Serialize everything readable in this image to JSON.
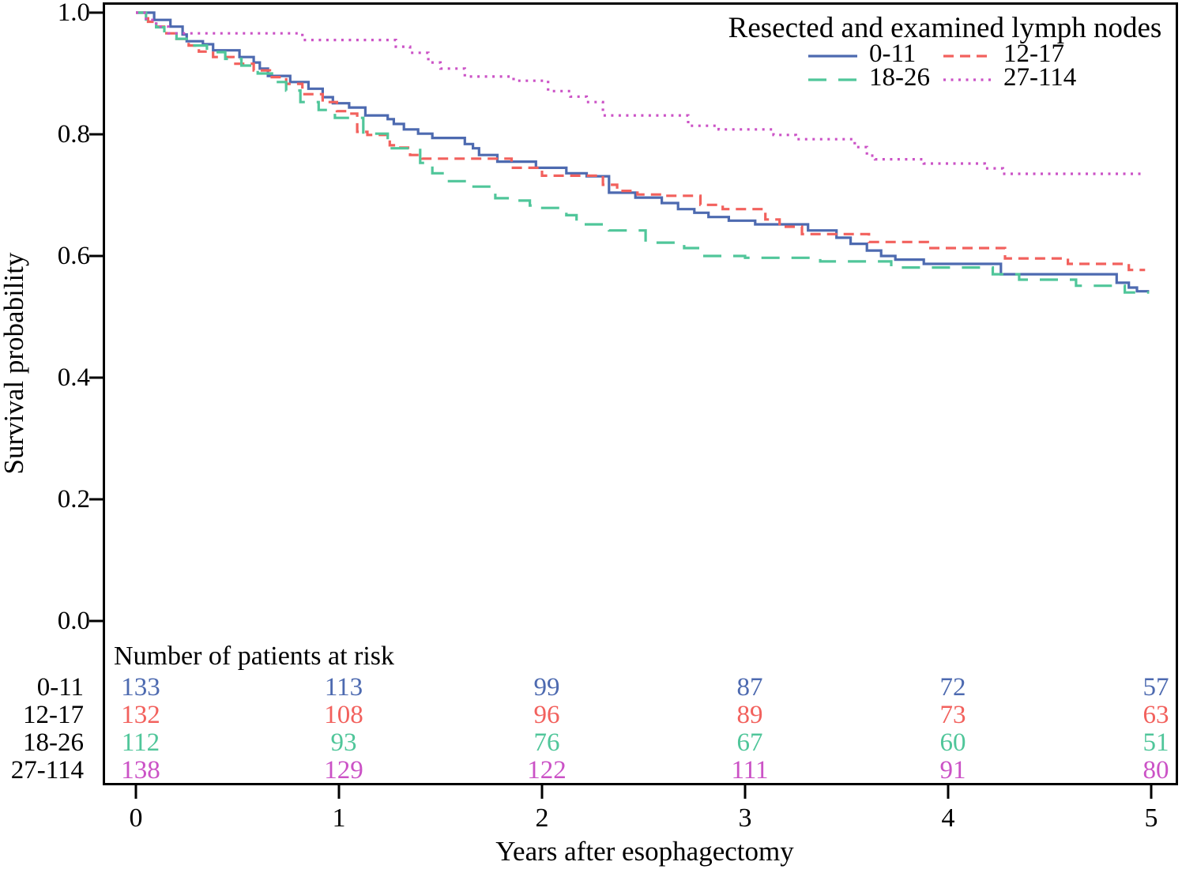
{
  "chart_data": {
    "type": "line",
    "subtype": "kaplan-meier-step",
    "xlabel": "Years after esophagectomy",
    "ylabel": "Survival probability",
    "xlim": [
      0,
      5
    ],
    "ylim": [
      0.0,
      1.0
    ],
    "grid": false,
    "legend_position": "top-right",
    "legend_title": "Resected and examined lymph nodes",
    "x_tick_labels": [
      "0",
      "1",
      "2",
      "3",
      "4",
      "5"
    ],
    "x_tick_values": [
      0,
      1,
      2,
      3,
      4,
      5
    ],
    "y_tick_labels": [
      "1.0",
      "0.8",
      "0.6",
      "0.4",
      "0.2",
      "0.0"
    ],
    "y_tick_values": [
      1.0,
      0.8,
      0.6,
      0.4,
      0.2,
      0.0
    ],
    "axis_color": "#000000",
    "series": [
      {
        "name": "0-11",
        "color": "#4d6ab0",
        "dash": "solid",
        "points": [
          [
            0,
            1.0
          ],
          [
            0.09,
            0.988
          ],
          [
            0.17,
            0.977
          ],
          [
            0.23,
            0.964
          ],
          [
            0.25,
            0.953
          ],
          [
            0.33,
            0.948
          ],
          [
            0.38,
            0.938
          ],
          [
            0.51,
            0.927
          ],
          [
            0.58,
            0.918
          ],
          [
            0.61,
            0.908
          ],
          [
            0.65,
            0.896
          ],
          [
            0.76,
            0.886
          ],
          [
            0.85,
            0.875
          ],
          [
            0.92,
            0.861
          ],
          [
            0.97,
            0.851
          ],
          [
            1.05,
            0.844
          ],
          [
            1.13,
            0.831
          ],
          [
            1.24,
            0.825
          ],
          [
            1.27,
            0.817
          ],
          [
            1.32,
            0.808
          ],
          [
            1.39,
            0.801
          ],
          [
            1.46,
            0.794
          ],
          [
            1.62,
            0.784
          ],
          [
            1.66,
            0.777
          ],
          [
            1.69,
            0.766
          ],
          [
            1.78,
            0.755
          ],
          [
            1.97,
            0.745
          ],
          [
            2.12,
            0.736
          ],
          [
            2.22,
            0.731
          ],
          [
            2.33,
            0.704
          ],
          [
            2.46,
            0.696
          ],
          [
            2.59,
            0.687
          ],
          [
            2.67,
            0.677
          ],
          [
            2.75,
            0.671
          ],
          [
            2.82,
            0.664
          ],
          [
            2.92,
            0.658
          ],
          [
            3.05,
            0.652
          ],
          [
            3.31,
            0.642
          ],
          [
            3.45,
            0.63
          ],
          [
            3.52,
            0.62
          ],
          [
            3.6,
            0.609
          ],
          [
            3.67,
            0.6
          ],
          [
            3.74,
            0.594
          ],
          [
            3.88,
            0.587
          ],
          [
            4.26,
            0.57
          ],
          [
            4.83,
            0.556
          ],
          [
            4.89,
            0.548
          ],
          [
            4.93,
            0.542
          ],
          [
            4.99,
            0.542
          ]
        ]
      },
      {
        "name": "12-17",
        "color": "#f2615d",
        "dash": "dash",
        "points": [
          [
            0,
            1.0
          ],
          [
            0.06,
            0.985
          ],
          [
            0.1,
            0.977
          ],
          [
            0.15,
            0.966
          ],
          [
            0.2,
            0.957
          ],
          [
            0.26,
            0.946
          ],
          [
            0.31,
            0.936
          ],
          [
            0.38,
            0.927
          ],
          [
            0.48,
            0.916
          ],
          [
            0.58,
            0.905
          ],
          [
            0.66,
            0.894
          ],
          [
            0.74,
            0.883
          ],
          [
            0.82,
            0.866
          ],
          [
            0.92,
            0.853
          ],
          [
            0.99,
            0.838
          ],
          [
            1.03,
            0.834
          ],
          [
            1.09,
            0.804
          ],
          [
            1.14,
            0.799
          ],
          [
            1.25,
            0.782
          ],
          [
            1.28,
            0.778
          ],
          [
            1.35,
            0.766
          ],
          [
            1.41,
            0.76
          ],
          [
            1.85,
            0.745
          ],
          [
            2.0,
            0.732
          ],
          [
            2.3,
            0.717
          ],
          [
            2.37,
            0.707
          ],
          [
            2.47,
            0.701
          ],
          [
            2.61,
            0.699
          ],
          [
            2.78,
            0.684
          ],
          [
            2.89,
            0.677
          ],
          [
            3.1,
            0.66
          ],
          [
            3.17,
            0.648
          ],
          [
            3.28,
            0.636
          ],
          [
            3.61,
            0.623
          ],
          [
            3.9,
            0.613
          ],
          [
            4.28,
            0.596
          ],
          [
            4.59,
            0.587
          ],
          [
            4.89,
            0.577
          ],
          [
            4.97,
            0.577
          ]
        ]
      },
      {
        "name": "18-26",
        "color": "#50c69a",
        "dash": "longdash",
        "points": [
          [
            0,
            1.0
          ],
          [
            0.05,
            0.985
          ],
          [
            0.1,
            0.976
          ],
          [
            0.14,
            0.966
          ],
          [
            0.2,
            0.957
          ],
          [
            0.25,
            0.946
          ],
          [
            0.35,
            0.935
          ],
          [
            0.44,
            0.924
          ],
          [
            0.52,
            0.913
          ],
          [
            0.6,
            0.9
          ],
          [
            0.67,
            0.886
          ],
          [
            0.74,
            0.872
          ],
          [
            0.81,
            0.853
          ],
          [
            0.9,
            0.84
          ],
          [
            0.98,
            0.827
          ],
          [
            1.12,
            0.801
          ],
          [
            1.24,
            0.777
          ],
          [
            1.4,
            0.753
          ],
          [
            1.46,
            0.736
          ],
          [
            1.52,
            0.723
          ],
          [
            1.64,
            0.714
          ],
          [
            1.74,
            0.707
          ],
          [
            1.77,
            0.695
          ],
          [
            1.86,
            0.691
          ],
          [
            1.94,
            0.683
          ],
          [
            1.97,
            0.679
          ],
          [
            2.12,
            0.667
          ],
          [
            2.17,
            0.652
          ],
          [
            2.33,
            0.642
          ],
          [
            2.51,
            0.622
          ],
          [
            2.7,
            0.613
          ],
          [
            2.79,
            0.6
          ],
          [
            3.0,
            0.597
          ],
          [
            3.37,
            0.591
          ],
          [
            3.72,
            0.581
          ],
          [
            4.22,
            0.57
          ],
          [
            4.35,
            0.561
          ],
          [
            4.63,
            0.551
          ],
          [
            4.87,
            0.54
          ],
          [
            4.99,
            0.54
          ]
        ]
      },
      {
        "name": "27-114",
        "color": "#cb52c6",
        "dash": "dot",
        "points": [
          [
            0,
            1.0
          ],
          [
            0.05,
            0.988
          ],
          [
            0.1,
            0.977
          ],
          [
            0.16,
            0.966
          ],
          [
            0.82,
            0.955
          ],
          [
            1.28,
            0.944
          ],
          [
            1.35,
            0.934
          ],
          [
            1.44,
            0.918
          ],
          [
            1.5,
            0.908
          ],
          [
            1.62,
            0.895
          ],
          [
            1.86,
            0.888
          ],
          [
            2.03,
            0.871
          ],
          [
            2.14,
            0.862
          ],
          [
            2.22,
            0.853
          ],
          [
            2.3,
            0.831
          ],
          [
            2.72,
            0.814
          ],
          [
            2.87,
            0.808
          ],
          [
            3.14,
            0.799
          ],
          [
            3.25,
            0.792
          ],
          [
            3.54,
            0.779
          ],
          [
            3.6,
            0.765
          ],
          [
            3.64,
            0.759
          ],
          [
            3.88,
            0.752
          ],
          [
            4.18,
            0.744
          ],
          [
            4.27,
            0.735
          ],
          [
            4.95,
            0.735
          ]
        ]
      }
    ],
    "risk_table": {
      "title": "Number of patients at risk",
      "time_points": [
        0,
        1,
        2,
        3,
        4,
        5
      ],
      "rows": [
        {
          "label": "0-11",
          "color": "#4d6ab0",
          "values": [
            "133",
            "113",
            "99",
            "87",
            "72",
            "57"
          ]
        },
        {
          "label": "12-17",
          "color": "#f2615d",
          "values": [
            "132",
            "108",
            "96",
            "89",
            "73",
            "63"
          ]
        },
        {
          "label": "18-26",
          "color": "#50c69a",
          "values": [
            "112",
            "93",
            "76",
            "67",
            "60",
            "51"
          ]
        },
        {
          "label": "27-114",
          "color": "#cb52c6",
          "values": [
            "138",
            "129",
            "122",
            "111",
            "91",
            "80"
          ]
        }
      ]
    }
  }
}
